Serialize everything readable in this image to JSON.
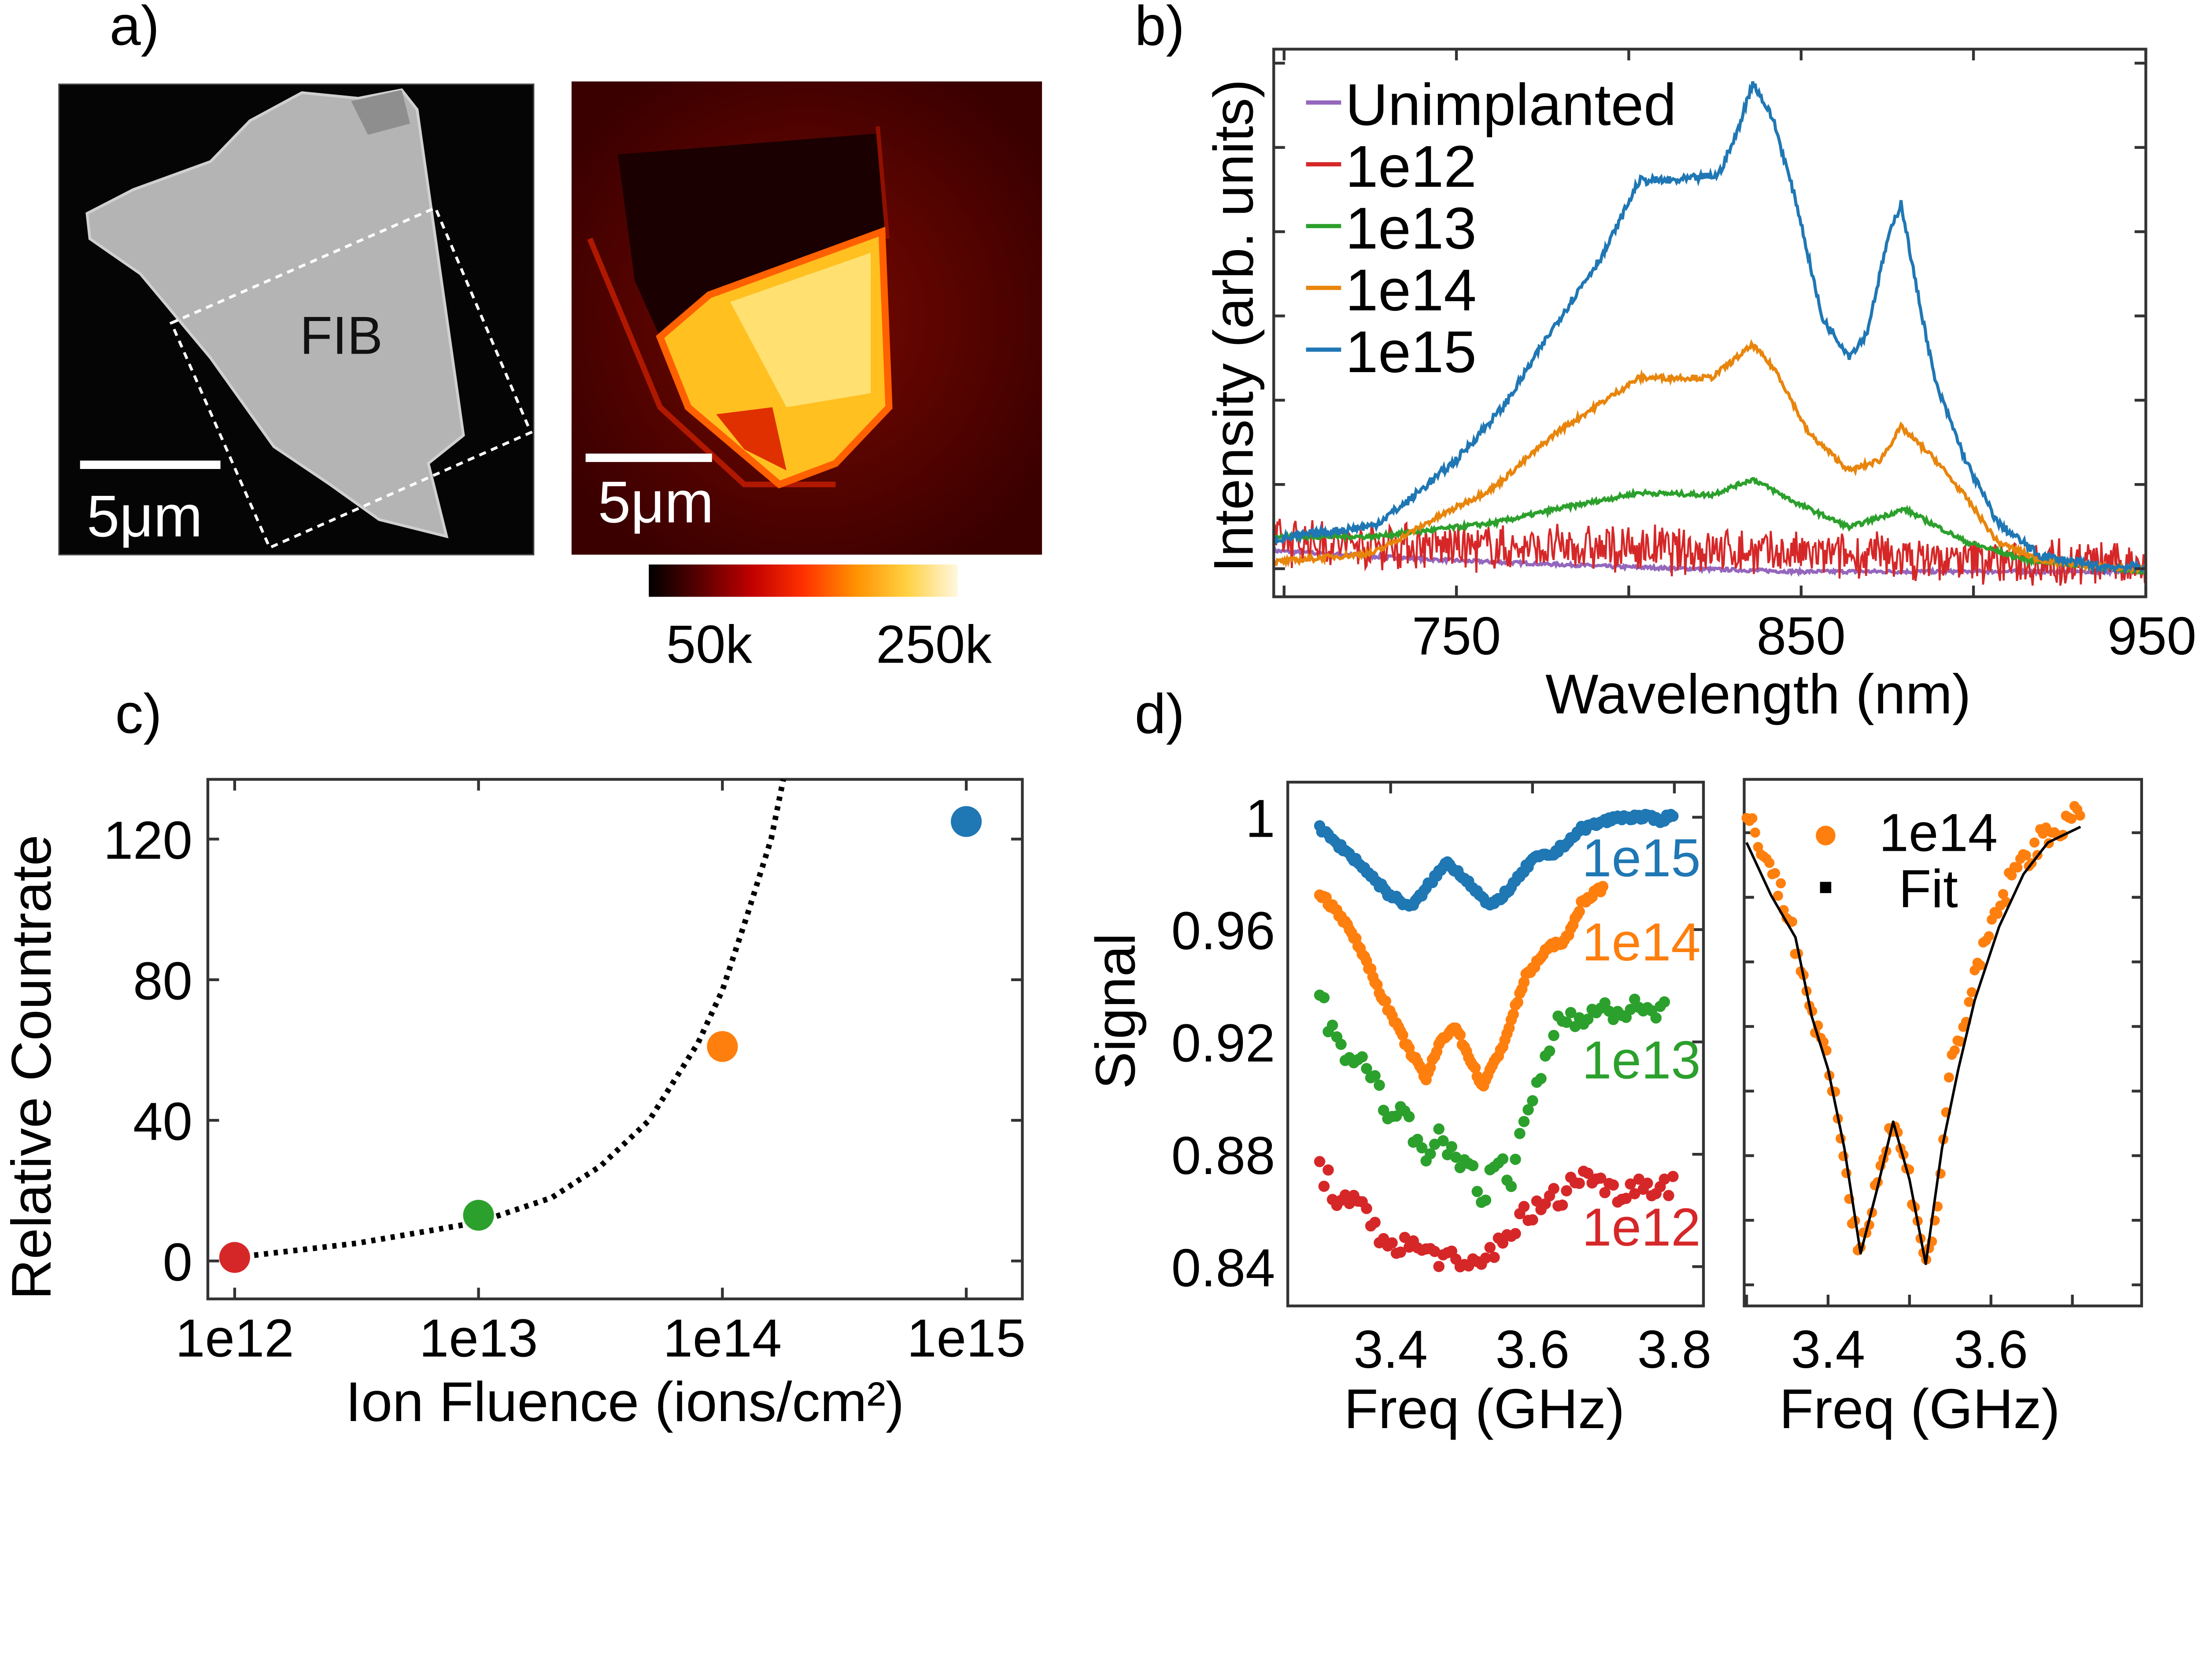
{
  "panel_labels": {
    "a": "a)",
    "b": "b)",
    "c": "c)",
    "d": "d)"
  },
  "panel_a": {
    "sem_label": "FIB",
    "sem_scalebar": "5μm",
    "pl_scalebar": "5μm",
    "colorbar_min_label": "50k",
    "colorbar_max_label": "250k",
    "colorbar_colors": [
      "#000000",
      "#5a0000",
      "#c00000",
      "#ff3000",
      "#ff9000",
      "#ffd040",
      "#fff8e0"
    ]
  },
  "chart_data": [
    {
      "id": "b",
      "type": "line",
      "title": "",
      "xlabel": "Wavelength (nm)",
      "ylabel": "Intensity (arb. units)",
      "xlim": [
        697,
        950
      ],
      "ylim": [
        0,
        1
      ],
      "xticks": [
        750,
        850,
        950
      ],
      "xtick_labels": [
        "750",
        "850",
        "950"
      ],
      "legend": "top-left",
      "series": [
        {
          "name": "Unimplanted",
          "color": "#9467bd",
          "noise": 0.006,
          "x": [
            697,
            743,
            796,
            849,
            950
          ],
          "y": [
            0.084,
            0.068,
            0.055,
            0.046,
            0.046
          ]
        },
        {
          "name": "1e12",
          "color": "#d62728",
          "noise": 0.05,
          "x": [
            697,
            760,
            820,
            880,
            950
          ],
          "y": [
            0.1,
            0.09,
            0.085,
            0.07,
            0.06
          ]
        },
        {
          "name": "1e13",
          "color": "#2ca02c",
          "noise": 0.008,
          "x": [
            697,
            726,
            761,
            779,
            803,
            824,
            836,
            849,
            864,
            880,
            898,
            915,
            950
          ],
          "y": [
            0.11,
            0.11,
            0.135,
            0.16,
            0.19,
            0.186,
            0.215,
            0.17,
            0.127,
            0.16,
            0.1,
            0.068,
            0.046
          ]
        },
        {
          "name": "1e14",
          "color": "#e8850c",
          "noise": 0.01,
          "x": [
            697,
            726,
            743,
            761,
            779,
            803,
            824,
            836,
            843,
            852,
            864,
            873,
            879,
            889,
            898,
            907,
            919,
            936,
            950
          ],
          "y": [
            0.063,
            0.08,
            0.14,
            0.2,
            0.3,
            0.4,
            0.4,
            0.46,
            0.41,
            0.3,
            0.23,
            0.25,
            0.31,
            0.25,
            0.18,
            0.1,
            0.068,
            0.055,
            0.05
          ]
        },
        {
          "name": "1e15",
          "color": "#1f77b4",
          "noise": 0.015,
          "x": [
            697,
            726,
            735,
            750,
            764,
            779,
            793,
            803,
            814,
            826,
            831,
            836,
            842,
            849,
            856,
            864,
            869,
            875,
            879,
            883,
            889,
            898,
            907,
            919,
            936,
            950
          ],
          "y": [
            0.105,
            0.13,
            0.17,
            0.25,
            0.35,
            0.5,
            0.63,
            0.76,
            0.76,
            0.77,
            0.84,
            0.94,
            0.87,
            0.71,
            0.51,
            0.44,
            0.48,
            0.65,
            0.72,
            0.58,
            0.39,
            0.245,
            0.135,
            0.076,
            0.055,
            0.055
          ]
        }
      ]
    },
    {
      "id": "c",
      "type": "scatter",
      "xlabel": "Ion Fluence (ions/cm²)",
      "ylabel": "Relative Countrate",
      "xscale": "log",
      "xlim_log10": [
        11.89,
        15.23
      ],
      "ylim": [
        -10.8,
        137
      ],
      "xticks_log10": [
        12,
        13,
        14,
        15
      ],
      "xtick_labels": [
        "1e12",
        "1e13",
        "1e14",
        "1e15"
      ],
      "yticks": [
        0,
        40,
        80,
        120
      ],
      "ytick_labels": [
        "0",
        "40",
        "80",
        "120"
      ],
      "points": [
        {
          "label": "1e12",
          "log10x": 12,
          "y": 1,
          "color": "#d62728"
        },
        {
          "label": "1e13",
          "log10x": 13,
          "y": 13,
          "color": "#2ca02c"
        },
        {
          "label": "1e14",
          "log10x": 14,
          "y": 61,
          "color": "#ff7f0e"
        },
        {
          "label": "1e15",
          "log10x": 15,
          "y": 125,
          "color": "#1f77b4"
        }
      ],
      "fit": {
        "style": "dotted",
        "color": "#000000",
        "log10x": [
          12,
          12.5,
          13,
          13.3,
          13.5,
          13.7,
          13.9,
          14.0,
          14.1,
          14.2,
          14.25
        ],
        "y": [
          1,
          5,
          11,
          18,
          27,
          40,
          62,
          77,
          98,
          120,
          137
        ]
      }
    },
    {
      "id": "d-left",
      "type": "scatter",
      "xlabel": "Freq (GHz)",
      "ylabel": "Signal",
      "xlim": [
        3.255,
        3.841
      ],
      "ylim": [
        0.826,
        1.0125
      ],
      "xticks": [
        3.4,
        3.6,
        3.8
      ],
      "xtick_labels": [
        "3.4",
        "3.6",
        "3.8"
      ],
      "yticks": [
        1.0,
        0.96,
        0.92,
        0.88,
        0.84
      ],
      "ytick_labels": [
        "1",
        "0.96",
        "0.92",
        "0.88",
        "0.84"
      ],
      "series": [
        {
          "name": "1e15",
          "color": "#1f77b4",
          "dense": true,
          "x": [
            3.3,
            3.35,
            3.4,
            3.43,
            3.46,
            3.48,
            3.51,
            3.54,
            3.57,
            3.6,
            3.63,
            3.67,
            3.72,
            3.76,
            3.78,
            3.8
          ],
          "y": [
            0.996,
            0.985,
            0.972,
            0.968,
            0.978,
            0.984,
            0.977,
            0.968,
            0.975,
            0.985,
            0.987,
            0.996,
            1.0,
            1.0,
            0.999,
            1.001
          ]
        },
        {
          "name": "1e14",
          "color": "#ff7f0e",
          "dense": true,
          "x": [
            3.3,
            3.33,
            3.36,
            3.39,
            3.42,
            3.45,
            3.47,
            3.49,
            3.51,
            3.53,
            3.56,
            3.59,
            3.62,
            3.65,
            3.67,
            3.7
          ],
          "y": [
            0.973,
            0.965,
            0.952,
            0.935,
            0.92,
            0.907,
            0.92,
            0.926,
            0.915,
            0.904,
            0.92,
            0.943,
            0.953,
            0.957,
            0.97,
            0.975
          ]
        },
        {
          "name": "1e13",
          "color": "#2ca02c",
          "dense": false,
          "x": [
            3.3,
            3.32,
            3.35,
            3.38,
            3.4,
            3.42,
            3.45,
            3.47,
            3.49,
            3.51,
            3.53,
            3.55,
            3.57,
            3.59,
            3.61,
            3.64,
            3.67,
            3.7,
            3.73,
            3.76,
            3.79
          ],
          "y": [
            0.94,
            0.92,
            0.915,
            0.905,
            0.895,
            0.893,
            0.882,
            0.885,
            0.878,
            0.878,
            0.865,
            0.877,
            0.87,
            0.893,
            0.908,
            0.93,
            0.93,
            0.93,
            0.932,
            0.93,
            0.933
          ]
        },
        {
          "name": "1e12",
          "color": "#d62728",
          "dense": false,
          "x": [
            3.3,
            3.33,
            3.36,
            3.39,
            3.42,
            3.45,
            3.48,
            3.5,
            3.53,
            3.56,
            3.59,
            3.62,
            3.65,
            3.68,
            3.71,
            3.74,
            3.77,
            3.8
          ],
          "y": [
            0.875,
            0.863,
            0.86,
            0.85,
            0.847,
            0.846,
            0.843,
            0.838,
            0.842,
            0.851,
            0.858,
            0.862,
            0.868,
            0.874,
            0.866,
            0.869,
            0.869,
            0.87
          ]
        }
      ]
    },
    {
      "id": "d-right",
      "type": "scatter",
      "xlabel": "Freq (GHz)",
      "ylabel": "",
      "xlim": [
        3.297,
        3.785
      ],
      "ylim": [
        0,
        1
      ],
      "xticks": [
        3.4,
        3.6
      ],
      "xtick_labels": [
        "3.4",
        "3.6"
      ],
      "legend": "top-center",
      "series": [
        {
          "name": "1e14",
          "color": "#ff7f0e",
          "kind": "points",
          "x": [
            3.3,
            3.32,
            3.35,
            3.38,
            3.4,
            3.42,
            3.43,
            3.44,
            3.46,
            3.48,
            3.5,
            3.52,
            3.53,
            3.55,
            3.57,
            3.6,
            3.63,
            3.66,
            3.7,
            3.71
          ],
          "y": [
            0.93,
            0.87,
            0.75,
            0.56,
            0.45,
            0.29,
            0.16,
            0.11,
            0.24,
            0.35,
            0.24,
            0.09,
            0.13,
            0.45,
            0.56,
            0.72,
            0.83,
            0.88,
            0.93,
            0.92
          ]
        },
        {
          "name": "Fit",
          "color": "#000000",
          "kind": "line",
          "x": [
            3.3,
            3.33,
            3.36,
            3.38,
            3.4,
            3.42,
            3.44,
            3.46,
            3.48,
            3.5,
            3.52,
            3.54,
            3.56,
            3.58,
            3.61,
            3.64,
            3.67,
            3.71
          ],
          "y": [
            0.88,
            0.78,
            0.7,
            0.55,
            0.45,
            0.3,
            0.1,
            0.22,
            0.35,
            0.24,
            0.08,
            0.3,
            0.45,
            0.58,
            0.72,
            0.82,
            0.88,
            0.91
          ]
        }
      ]
    }
  ]
}
